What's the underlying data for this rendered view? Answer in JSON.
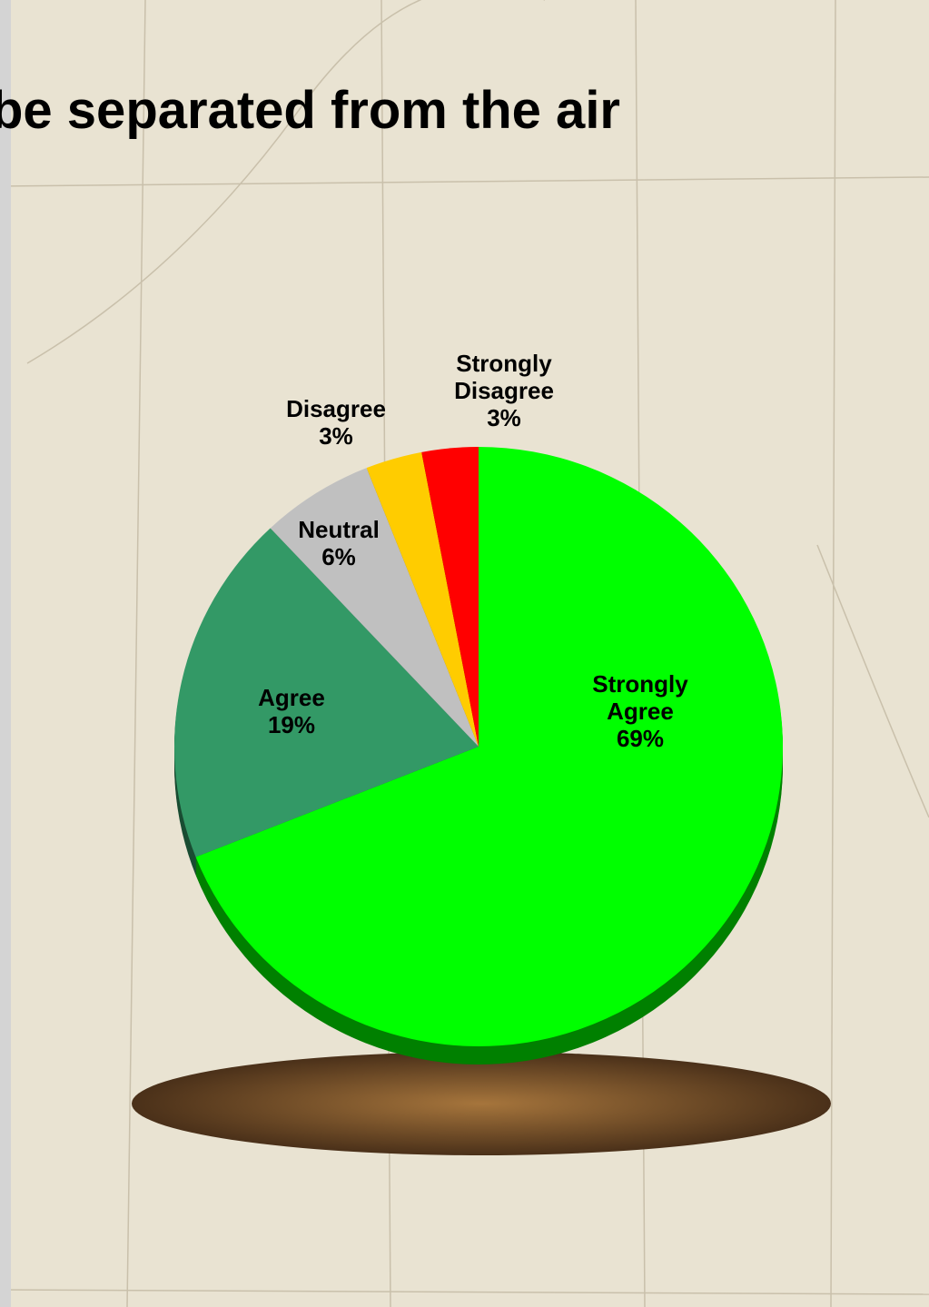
{
  "chart_data": {
    "type": "pie",
    "title": "be separated from the air",
    "categories": [
      "Strongly Agree",
      "Agree",
      "Neutral",
      "Disagree",
      "Strongly Disagree"
    ],
    "values": [
      69,
      19,
      6,
      3,
      3
    ],
    "value_labels": [
      "69%",
      "19%",
      "6%",
      "3%",
      "3%"
    ],
    "colors": [
      "#00ff00",
      "#339966",
      "#c0c0c0",
      "#ffcc00",
      "#ff0000"
    ]
  }
}
